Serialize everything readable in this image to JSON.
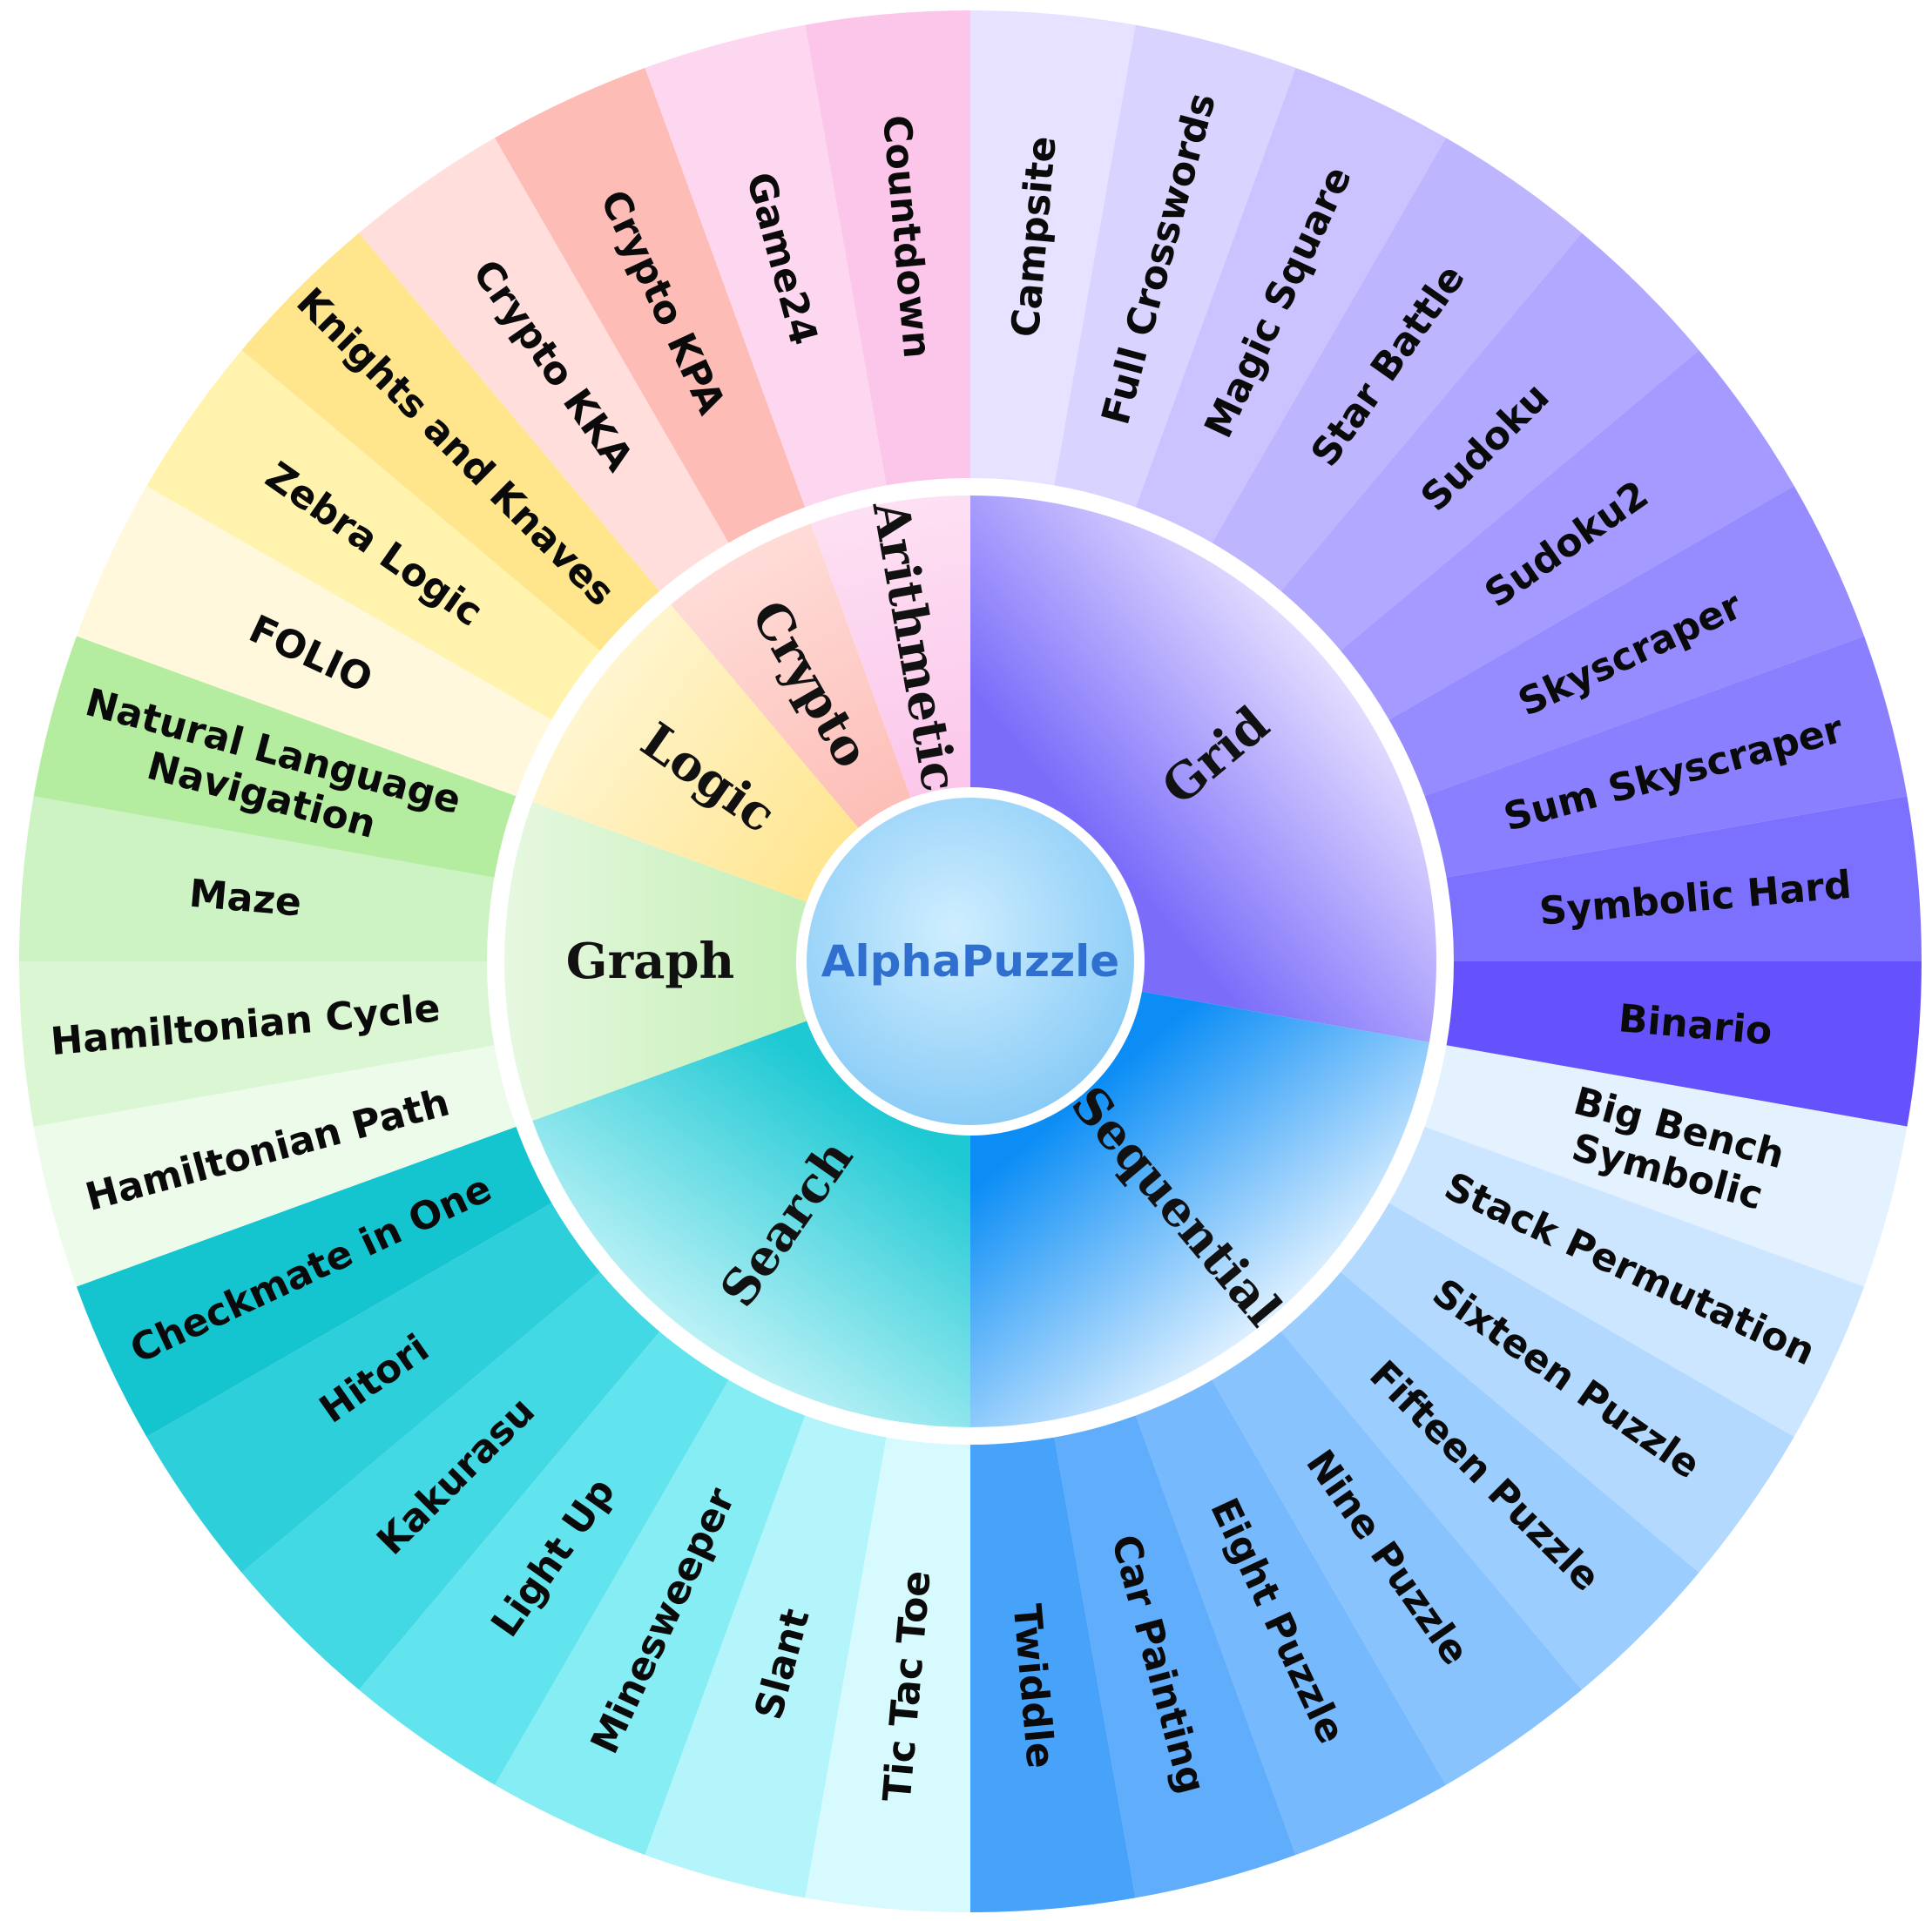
{
  "center": {
    "title": "AlphaPuzzle",
    "title_color": "#2f6fd0",
    "fill_inner": "#cfeeff",
    "fill_outer": "#7fc6f5"
  },
  "categories": [
    {
      "name": "Grid",
      "colors": [
        "#e6e2ff",
        "#d9d3ff",
        "#cbc3ff",
        "#beb5ff",
        "#b1a8ff",
        "#a49aff",
        "#978cff",
        "#8a7fff",
        "#7c70fe",
        "#6552fd"
      ],
      "inner_colors": [
        "#e3ddff",
        "#7b6dfa"
      ],
      "puzzles": [
        [
          "Campsite"
        ],
        [
          "Full Crosswords"
        ],
        [
          "Magic Square"
        ],
        [
          "Star Battle"
        ],
        [
          "Sudoku"
        ],
        [
          "Sudoku2"
        ],
        [
          "Skyscraper"
        ],
        [
          "Sum Skyscraper"
        ],
        [
          "Symbolic Hard"
        ],
        [
          "Binario"
        ]
      ]
    },
    {
      "name": "Sequential",
      "colors": [
        "#e4f1ff",
        "#cde6ff",
        "#b3d9ff",
        "#9ccdff",
        "#89c3fe",
        "#76b9fd",
        "#5fadfb",
        "#47a2fa",
        "#2f97f9",
        "#0a8ef6"
      ],
      "inner_colors": [
        "#dcefff",
        "#0b8df5"
      ],
      "puzzles": [
        [
          "Big Bench",
          "Symbolic"
        ],
        [
          "Stack Permutation"
        ],
        [
          "Sixteen Puzzle"
        ],
        [
          "Fifteen Puzzle"
        ],
        [
          "Nine Puzzle"
        ],
        [
          "Eight Puzzle"
        ],
        [
          "Car Painting"
        ],
        [
          "Twiddle"
        ]
      ]
    },
    {
      "name": "Search",
      "colors": [
        "#d6fafd",
        "#b4f5fb",
        "#86edf5",
        "#62e4ee",
        "#43d9e4",
        "#2ccfda",
        "#14c4cf"
      ],
      "inner_colors": [
        "#baf1f6",
        "#1fc9d4"
      ],
      "puzzles": [
        [
          "Tic Tac Toe"
        ],
        [
          "Slant"
        ],
        [
          "Minesweeper"
        ],
        [
          "Light Up"
        ],
        [
          "Kakurasu"
        ],
        [
          "Hitori"
        ],
        [
          "Checkmate in One"
        ]
      ]
    },
    {
      "name": "Graph",
      "colors": [
        "#ecfbea",
        "#daf6d3",
        "#cdf2c4",
        "#b5eda0"
      ],
      "inner_colors": [
        "#e6f8e0",
        "#c6efb8"
      ],
      "puzzles": [
        [
          "Hamiltonian Path"
        ],
        [
          "Hamiltonian Cycle"
        ],
        [
          "Maze"
        ],
        [
          "Natural Language",
          "Navigation"
        ]
      ]
    },
    {
      "name": "Logic",
      "colors": [
        "#fff8dc",
        "#fff3ad",
        "#ffe68c"
      ],
      "inner_colors": [
        "#fff5cf",
        "#ffe692"
      ],
      "puzzles": [
        [
          "FOLIO"
        ],
        [
          "Zebra Logic"
        ],
        [
          "Knights and Knaves"
        ]
      ]
    },
    {
      "name": "Crypto",
      "colors": [
        "#ffdedb",
        "#fdbcb6"
      ],
      "inner_colors": [
        "#ffdcd8",
        "#fdbfb8"
      ],
      "puzzles": [
        [
          "Crypto KKA"
        ],
        [
          "Crypto KPA"
        ]
      ]
    },
    {
      "name": "Arithmetic",
      "colors": [
        "#fdd7f0",
        "#fcc5ea"
      ],
      "inner_colors": [
        "#fde0f3",
        "#fcc7eb"
      ],
      "puzzles": [
        [
          "Game24"
        ],
        [
          "Countdown"
        ]
      ]
    }
  ]
}
